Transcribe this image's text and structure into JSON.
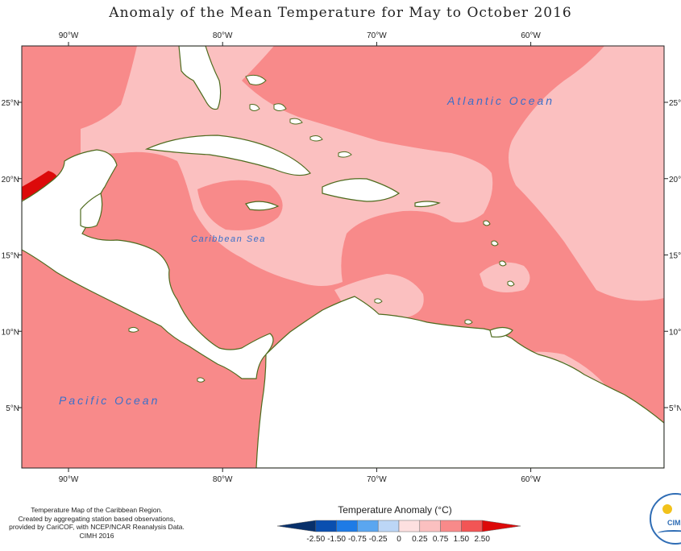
{
  "title": "Anomaly of the Mean Temperature for May to October 2016",
  "map": {
    "longitude_labels": [
      {
        "lon": -90,
        "label": "90°W"
      },
      {
        "lon": -80,
        "label": "80°W"
      },
      {
        "lon": -70,
        "label": "70°W"
      },
      {
        "lon": -60,
        "label": "60°W"
      }
    ],
    "latitude_labels": [
      {
        "lat": 25,
        "label": "25°N"
      },
      {
        "lat": 20,
        "label": "20°N"
      },
      {
        "lat": 15,
        "label": "15°N"
      },
      {
        "lat": 10,
        "label": "10°N"
      },
      {
        "lat": 5,
        "label": "5°N"
      }
    ],
    "place_labels": {
      "atlantic": "Atlantic Ocean",
      "caribbean": "Caribbean Sea",
      "pacific": "Pacific Ocean"
    }
  },
  "footer": {
    "lines": [
      "Temperature Map of the Caribbean Region.",
      "Created by aggregating station based observations,",
      "provided by CariCOF, with NCEP/NCAR Reanalysis Data.",
      "CIMH 2016"
    ]
  },
  "legend": {
    "title": "Temperature Anomaly (°C)",
    "classes": [
      {
        "color": "#08306b"
      },
      {
        "color": "#0a4fb0"
      },
      {
        "color": "#1e7be6"
      },
      {
        "color": "#5aa6f0"
      },
      {
        "color": "#bcd6f6"
      },
      {
        "color": "#fde0e0"
      },
      {
        "color": "#fbc0c0"
      },
      {
        "color": "#f88a8a"
      },
      {
        "color": "#f25555"
      },
      {
        "color": "#dc0a0a"
      }
    ],
    "tick_labels": [
      "-2.50",
      "-1.50",
      "-0.75",
      "-0.25",
      "0",
      "0.25",
      "0.75",
      "1.50",
      "2.50"
    ]
  },
  "logo": {
    "text": "CIM"
  },
  "colors": {
    "land_outline": "#4e6b1e",
    "pale_pink": "#fbc0c0",
    "mid_pink": "#f88a8a",
    "strong_red": "#dc0a0a",
    "pale_blue": "#bcd6f6",
    "blue": "#5aa6f0"
  }
}
